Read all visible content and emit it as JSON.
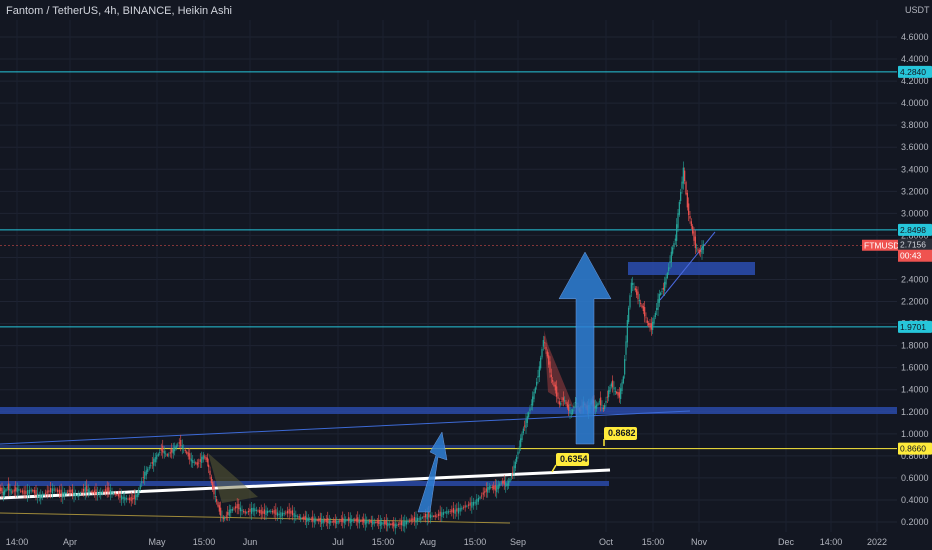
{
  "header": {
    "title": "Fantom / TetherUS, 4h, BINANCE, Heikin Ashi"
  },
  "chart_data": {
    "type": "candlestick",
    "title": "Fantom / TetherUS, 4h, BINANCE, Heikin Ashi",
    "y_unit": "USDT",
    "ylim": [
      0.1,
      4.9
    ],
    "y_ticks": [
      "4.6000",
      "4.4000",
      "4.2000",
      "4.0000",
      "3.8000",
      "3.6000",
      "3.4000",
      "3.2000",
      "3.0000",
      "2.8000",
      "2.6000",
      "2.4000",
      "2.2000",
      "2.0000",
      "1.8000",
      "1.6000",
      "1.4000",
      "1.2000",
      "1.0000",
      "0.8000",
      "0.6000",
      "0.4000",
      "0.2000"
    ],
    "x_ticks": [
      "14:00",
      "Apr",
      "May",
      "15:00",
      "Jun",
      "Jul",
      "15:00",
      "Aug",
      "15:00",
      "Sep",
      "Oct",
      "15:00",
      "Nov",
      "Dec",
      "14:00",
      "2022"
    ],
    "price_path": [
      [
        0,
        0.5
      ],
      [
        4,
        0.46
      ],
      [
        8,
        0.52
      ],
      [
        12,
        0.47
      ],
      [
        18,
        0.5
      ],
      [
        25,
        0.46
      ],
      [
        32,
        0.49
      ],
      [
        40,
        0.43
      ],
      [
        48,
        0.47
      ],
      [
        55,
        0.5
      ],
      [
        62,
        0.45
      ],
      [
        70,
        0.48
      ],
      [
        78,
        0.44
      ],
      [
        86,
        0.5
      ],
      [
        92,
        0.47
      ],
      [
        100,
        0.46
      ],
      [
        108,
        0.49
      ],
      [
        116,
        0.45
      ],
      [
        124,
        0.42
      ],
      [
        132,
        0.4
      ],
      [
        138,
        0.45
      ],
      [
        144,
        0.62
      ],
      [
        150,
        0.7
      ],
      [
        156,
        0.78
      ],
      [
        162,
        0.86
      ],
      [
        168,
        0.8
      ],
      [
        174,
        0.86
      ],
      [
        180,
        0.92
      ],
      [
        186,
        0.84
      ],
      [
        192,
        0.76
      ],
      [
        198,
        0.72
      ],
      [
        204,
        0.8
      ],
      [
        208,
        0.75
      ],
      [
        212,
        0.55
      ],
      [
        216,
        0.42
      ],
      [
        220,
        0.3
      ],
      [
        224,
        0.22
      ],
      [
        230,
        0.3
      ],
      [
        238,
        0.34
      ],
      [
        246,
        0.28
      ],
      [
        254,
        0.32
      ],
      [
        262,
        0.28
      ],
      [
        270,
        0.3
      ],
      [
        280,
        0.27
      ],
      [
        290,
        0.29
      ],
      [
        300,
        0.24
      ],
      [
        312,
        0.22
      ],
      [
        324,
        0.21
      ],
      [
        336,
        0.2
      ],
      [
        348,
        0.22
      ],
      [
        360,
        0.21
      ],
      [
        372,
        0.2
      ],
      [
        384,
        0.19
      ],
      [
        396,
        0.17
      ],
      [
        404,
        0.19
      ],
      [
        412,
        0.22
      ],
      [
        420,
        0.23
      ],
      [
        428,
        0.26
      ],
      [
        436,
        0.25
      ],
      [
        446,
        0.29
      ],
      [
        456,
        0.3
      ],
      [
        466,
        0.34
      ],
      [
        476,
        0.38
      ],
      [
        484,
        0.46
      ],
      [
        490,
        0.52
      ],
      [
        496,
        0.5
      ],
      [
        502,
        0.56
      ],
      [
        508,
        0.54
      ],
      [
        512,
        0.62
      ],
      [
        516,
        0.74
      ],
      [
        520,
        0.9
      ],
      [
        524,
        1.05
      ],
      [
        528,
        1.15
      ],
      [
        532,
        1.28
      ],
      [
        536,
        1.42
      ],
      [
        540,
        1.6
      ],
      [
        544,
        1.86
      ],
      [
        548,
        1.7
      ],
      [
        552,
        1.5
      ],
      [
        556,
        1.4
      ],
      [
        560,
        1.26
      ],
      [
        564,
        1.32
      ],
      [
        568,
        1.24
      ],
      [
        572,
        1.18
      ],
      [
        576,
        1.3
      ],
      [
        580,
        1.2
      ],
      [
        584,
        1.28
      ],
      [
        588,
        1.22
      ],
      [
        592,
        1.3
      ],
      [
        596,
        1.24
      ],
      [
        600,
        1.3
      ],
      [
        604,
        1.22
      ],
      [
        608,
        1.35
      ],
      [
        612,
        1.46
      ],
      [
        616,
        1.38
      ],
      [
        620,
        1.34
      ],
      [
        624,
        1.52
      ],
      [
        628,
        2.02
      ],
      [
        632,
        2.38
      ],
      [
        636,
        2.3
      ],
      [
        640,
        2.2
      ],
      [
        644,
        2.12
      ],
      [
        648,
        2.0
      ],
      [
        652,
        1.96
      ],
      [
        656,
        2.1
      ],
      [
        660,
        2.26
      ],
      [
        664,
        2.32
      ],
      [
        668,
        2.46
      ],
      [
        672,
        2.64
      ],
      [
        676,
        2.78
      ],
      [
        680,
        3.1
      ],
      [
        684,
        3.4
      ],
      [
        688,
        3.06
      ],
      [
        692,
        2.88
      ],
      [
        696,
        2.7
      ],
      [
        700,
        2.64
      ],
      [
        704,
        2.71
      ]
    ],
    "horizontal_lines": [
      {
        "label": "4.2840",
        "value": 4.284,
        "color": "#26c6da"
      },
      {
        "label": "2.8498",
        "value": 2.8498,
        "color": "#26c6da"
      },
      {
        "label": "1.9701",
        "value": 1.9701,
        "color": "#26c6da"
      },
      {
        "label": "0.8660",
        "value": 0.866,
        "color": "#ffeb3b"
      }
    ],
    "current_price": {
      "symbol": "FTMUSDT",
      "value": "2.7063",
      "countdown": "00:43",
      "value2": "2.7156"
    },
    "callouts": [
      {
        "label": "0.8682",
        "value": 0.8682
      },
      {
        "label": "0.6354",
        "value": 0.6354
      }
    ],
    "colors": {
      "background": "#131722",
      "bull": "#26a69a",
      "bear": "#ef5350",
      "zone": "#2a4aa8",
      "arrow": "#2f80d6",
      "cyan_line": "#26c6da",
      "yellow_line": "#ffeb3b",
      "callout": "#ffeb3b",
      "price_badge": "#ef5350"
    }
  }
}
